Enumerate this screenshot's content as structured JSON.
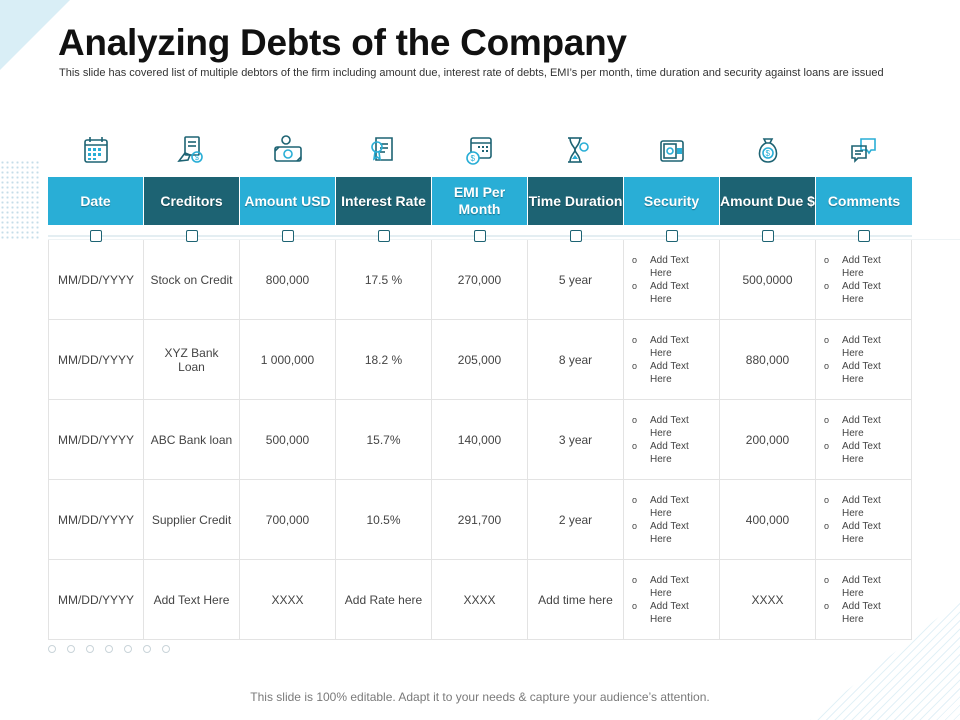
{
  "title": "Analyzing Debts of the Company",
  "subtitle": "This slide has covered list of multiple debtors of the firm including amount due, interest rate of debts, EMI’s per month, time duration and security against loans are issued",
  "icons": [
    "calendar-icon",
    "creditor-hand-icon",
    "cash-money-icon",
    "rate-certificate-icon",
    "calendar-dollar-icon",
    "hourglass-icon",
    "safe-security-icon",
    "money-bag-icon",
    "chat-bubbles-icon"
  ],
  "headers": [
    {
      "label": "Date",
      "style": "light"
    },
    {
      "label": "Creditors",
      "style": "dark"
    },
    {
      "label": "Amount USD",
      "style": "light"
    },
    {
      "label": "Interest Rate",
      "style": "dark"
    },
    {
      "label": "EMI Per Month",
      "style": "light"
    },
    {
      "label": "Time Duration",
      "style": "dark"
    },
    {
      "label": "Security",
      "style": "light"
    },
    {
      "label": "Amount Due $",
      "style": "dark"
    },
    {
      "label": "Comments",
      "style": "light"
    }
  ],
  "bullet_marker": "o",
  "rows": [
    {
      "date": "MM/DD/YYYY",
      "creditor": "Stock on Credit",
      "amount": "800,000",
      "rate": "17.5 %",
      "emi": "270,000",
      "duration": "5 year",
      "security": [
        "Add Text Here",
        "Add Text Here"
      ],
      "due": "500,0000",
      "comments": [
        "Add Text Here",
        "Add Text Here"
      ]
    },
    {
      "date": "MM/DD/YYYY",
      "creditor": "XYZ Bank Loan",
      "amount": "1 000,000",
      "rate": "18.2 %",
      "emi": "205,000",
      "duration": "8 year",
      "security": [
        "Add Text Here",
        "Add Text Here"
      ],
      "due": "880,000",
      "comments": [
        "Add Text Here",
        "Add Text Here"
      ]
    },
    {
      "date": "MM/DD/YYYY",
      "creditor": "ABC Bank loan",
      "amount": "500,000",
      "rate": "15.7%",
      "emi": "140,000",
      "duration": "3 year",
      "security": [
        "Add Text Here",
        "Add Text Here"
      ],
      "due": "200,000",
      "comments": [
        "Add Text Here",
        "Add Text Here"
      ]
    },
    {
      "date": "MM/DD/YYYY",
      "creditor": "Supplier Credit",
      "amount": "700,000",
      "rate": "10.5%",
      "emi": "291,700",
      "duration": "2 year",
      "security": [
        "Add Text Here",
        "Add Text Here"
      ],
      "due": "400,000",
      "comments": [
        "Add Text Here",
        "Add Text Here"
      ]
    },
    {
      "date": "MM/DD/YYYY",
      "creditor": "Add Text Here",
      "amount": "XXXX",
      "rate": "Add Rate here",
      "emi": "XXXX",
      "duration": "Add time here",
      "security": [
        "Add Text Here",
        "Add Text Here"
      ],
      "due": "XXXX",
      "comments": [
        "Add Text Here",
        "Add Text Here"
      ]
    }
  ],
  "footer": "This slide is 100% editable. Adapt it to your needs & capture your audience’s attention.",
  "colors": {
    "header_light": "#29aed6",
    "header_dark": "#1d6373",
    "icon": "#1d6373",
    "icon_accent": "#29aed6"
  }
}
